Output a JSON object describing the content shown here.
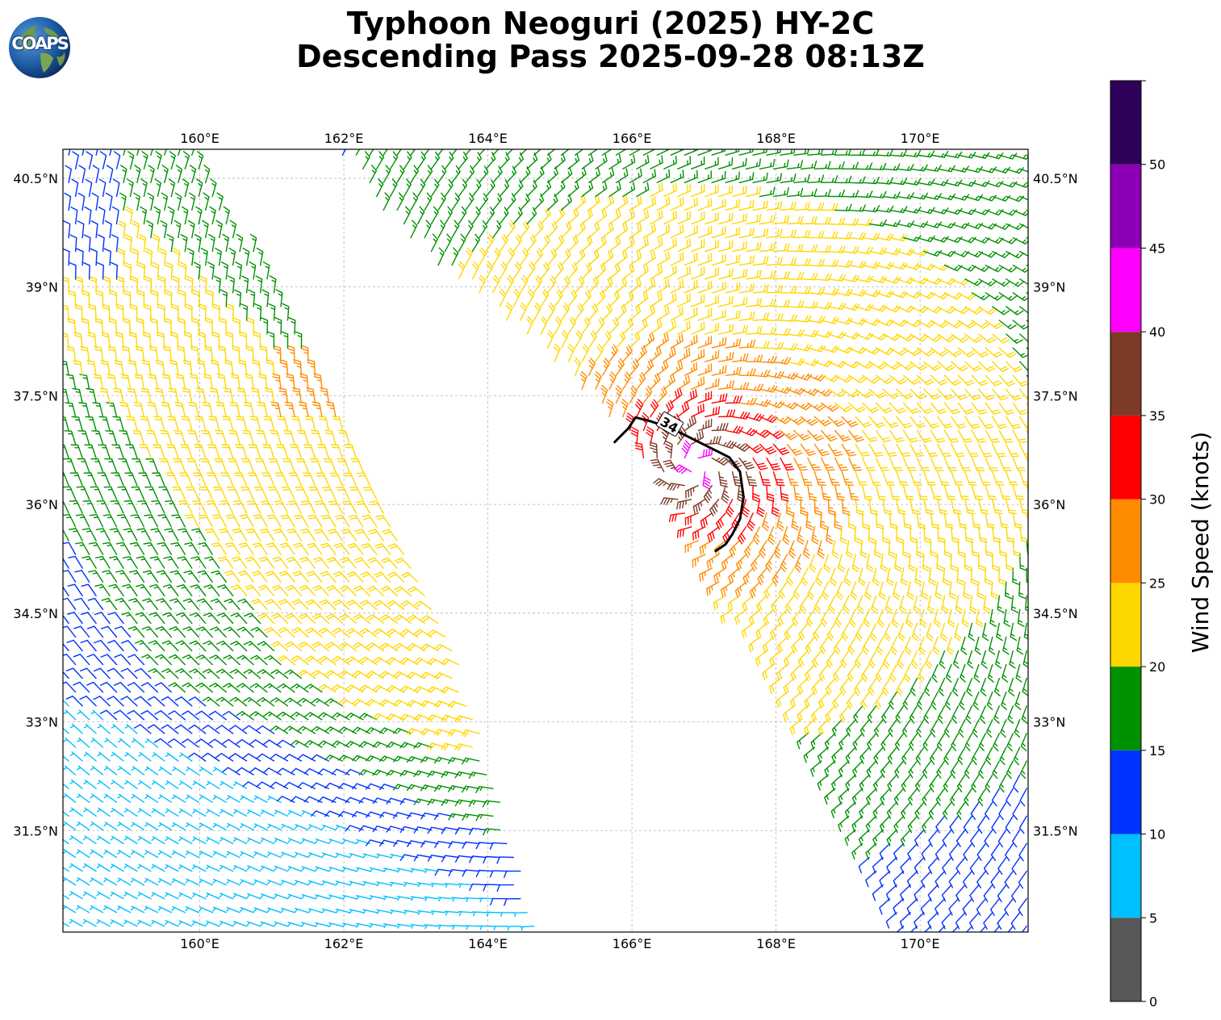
{
  "header": {
    "title_line1": "Typhoon Neoguri (2025) HY-2C",
    "title_line2": "Descending Pass 2025-09-28 08:13Z",
    "logo_text": "COAPS"
  },
  "chart_data": {
    "type": "wind-barbs",
    "projection": "PlateCarree",
    "lon_range": [
      158.1,
      171.5
    ],
    "lat_range": [
      30.1,
      40.9
    ],
    "lon_ticks": [
      160,
      162,
      164,
      166,
      168,
      170
    ],
    "lon_tick_labels": [
      "160°E",
      "162°E",
      "164°E",
      "166°E",
      "168°E",
      "170°E"
    ],
    "lat_ticks": [
      31.5,
      33,
      34.5,
      36,
      37.5,
      39,
      40.5
    ],
    "lat_tick_labels": [
      "31.5°N",
      "33°N",
      "34.5°N",
      "36°N",
      "37.5°N",
      "39°N",
      "40.5°N"
    ],
    "gridlines": true,
    "colorbar": {
      "label": "Wind Speed (knots)",
      "bounds": [
        0,
        5,
        10,
        15,
        20,
        25,
        30,
        35,
        40,
        45,
        50,
        55
      ],
      "tick_labels": [
        "0",
        "5",
        "10",
        "15",
        "20",
        "25",
        "30",
        "35",
        "40",
        "45",
        "50"
      ],
      "colors": [
        "#585858",
        "#00bfff",
        "#0033ff",
        "#009100",
        "#ffd700",
        "#ff8c00",
        "#ff0000",
        "#7d3a26",
        "#ff00ff",
        "#8b00b4",
        "#2d0059"
      ]
    },
    "contour_34kt": {
      "label": "34",
      "lons": [
        165.75,
        165.95,
        166.05,
        166.25,
        166.55,
        166.85,
        167.15,
        167.35,
        167.5,
        167.55,
        167.5,
        167.4,
        167.3,
        167.15
      ],
      "lats": [
        36.85,
        37.05,
        37.2,
        37.15,
        37.05,
        36.9,
        36.75,
        36.65,
        36.45,
        36.1,
        35.8,
        35.6,
        35.45,
        35.35
      ]
    },
    "center": {
      "lon": 166.9,
      "lat": 36.5
    },
    "swaths": [
      {
        "name": "western",
        "polygon_lon": [
          158.1,
          159.9,
          161.1,
          162.3,
          163.5,
          164.4,
          164.7,
          158.1
        ],
        "polygon_lat": [
          40.9,
          40.9,
          38.9,
          36.6,
          34.1,
          31.2,
          30.1,
          30.1
        ]
      },
      {
        "name": "eastern",
        "polygon_lon": [
          161.9,
          171.5,
          171.5,
          169.8,
          166.5,
          165.5,
          164.5,
          162.8,
          161.9
        ],
        "polygon_lat": [
          40.9,
          40.9,
          30.1,
          30.1,
          36.2,
          37.4,
          38.3,
          39.7,
          40.9
        ]
      }
    ]
  }
}
